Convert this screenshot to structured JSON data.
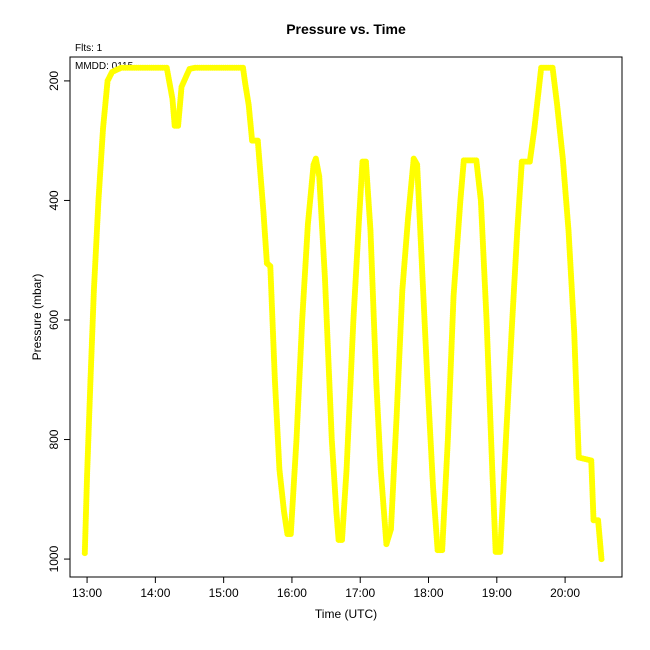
{
  "chart_data": {
    "type": "scatter",
    "title": "Pressure  vs. Time",
    "subtitle_fits": "Flts: 1",
    "subtitle_date": "MMDD: 0115",
    "xlabel": "Time (UTC)",
    "ylabel": "Pressure (mbar)",
    "xlim": [
      "12:45",
      "20:50"
    ],
    "ylim": [
      1030,
      160
    ],
    "y_axis_inverted": true,
    "x_ticks": [
      "13:00",
      "14:00",
      "15:00",
      "16:00",
      "17:00",
      "18:00",
      "19:00",
      "20:00"
    ],
    "y_ticks": [
      200,
      400,
      600,
      800,
      1000
    ],
    "grid": false,
    "series": [
      {
        "color": "#ffff00",
        "points": [
          [
            "12:58",
            990
          ],
          [
            "13:00",
            860
          ],
          [
            "13:03",
            700
          ],
          [
            "13:06",
            550
          ],
          [
            "13:10",
            400
          ],
          [
            "13:14",
            280
          ],
          [
            "13:18",
            200
          ],
          [
            "13:22",
            185
          ],
          [
            "13:30",
            178
          ],
          [
            "14:10",
            178
          ],
          [
            "14:15",
            230
          ],
          [
            "14:17",
            275
          ],
          [
            "14:20",
            275
          ],
          [
            "14:23",
            210
          ],
          [
            "14:30",
            180
          ],
          [
            "14:35",
            178
          ],
          [
            "15:17",
            178
          ],
          [
            "15:19",
            205
          ],
          [
            "15:22",
            240
          ],
          [
            "15:25",
            300
          ],
          [
            "15:30",
            300
          ],
          [
            "15:35",
            420
          ],
          [
            "15:38",
            505
          ],
          [
            "15:41",
            510
          ],
          [
            "15:45",
            700
          ],
          [
            "15:49",
            850
          ],
          [
            "15:53",
            920
          ],
          [
            "15:56",
            958
          ],
          [
            "15:59",
            958
          ],
          [
            "16:04",
            800
          ],
          [
            "16:09",
            600
          ],
          [
            "16:14",
            440
          ],
          [
            "16:19",
            340
          ],
          [
            "16:21",
            330
          ],
          [
            "16:24",
            360
          ],
          [
            "16:29",
            530
          ],
          [
            "16:35",
            800
          ],
          [
            "16:39",
            920
          ],
          [
            "16:41",
            968
          ],
          [
            "16:44",
            968
          ],
          [
            "16:48",
            850
          ],
          [
            "16:54",
            600
          ],
          [
            "16:59",
            430
          ],
          [
            "17:02",
            335
          ],
          [
            "17:05",
            335
          ],
          [
            "17:09",
            450
          ],
          [
            "17:14",
            700
          ],
          [
            "17:18",
            850
          ],
          [
            "17:23",
            975
          ],
          [
            "17:27",
            950
          ],
          [
            "17:32",
            760
          ],
          [
            "17:37",
            550
          ],
          [
            "17:42",
            430
          ],
          [
            "17:47",
            330
          ],
          [
            "17:50",
            340
          ],
          [
            "17:54",
            500
          ],
          [
            "17:59",
            700
          ],
          [
            "18:04",
            880
          ],
          [
            "18:08",
            985
          ],
          [
            "18:12",
            985
          ],
          [
            "18:17",
            800
          ],
          [
            "18:22",
            560
          ],
          [
            "18:28",
            400
          ],
          [
            "18:31",
            333
          ],
          [
            "18:42",
            333
          ],
          [
            "18:46",
            400
          ],
          [
            "18:51",
            600
          ],
          [
            "18:56",
            850
          ],
          [
            "18:59",
            988
          ],
          [
            "19:03",
            988
          ],
          [
            "19:08",
            800
          ],
          [
            "19:13",
            620
          ],
          [
            "19:18",
            450
          ],
          [
            "19:22",
            335
          ],
          [
            "19:29",
            335
          ],
          [
            "19:33",
            280
          ],
          [
            "19:39",
            178
          ],
          [
            "19:49",
            178
          ],
          [
            "19:53",
            240
          ],
          [
            "19:58",
            330
          ],
          [
            "20:03",
            450
          ],
          [
            "20:08",
            620
          ],
          [
            "20:12",
            830
          ],
          [
            "20:23",
            835
          ],
          [
            "20:25",
            935
          ],
          [
            "20:29",
            935
          ],
          [
            "20:32",
            1000
          ]
        ]
      }
    ]
  }
}
